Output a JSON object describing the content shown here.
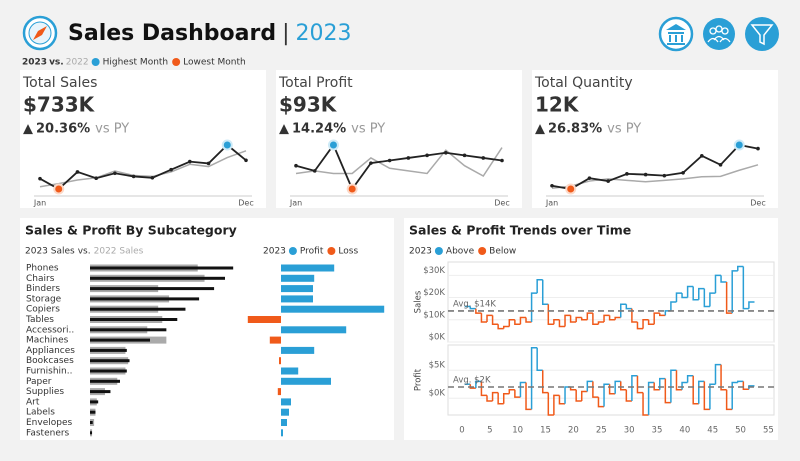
{
  "header": {
    "title": "Sales Dashboard",
    "separator": "|",
    "year": "2023",
    "compare_word": "vs.",
    "legend": [
      {
        "label": "Highest Month",
        "color": "#2a9fd6"
      },
      {
        "label": "Lowest Month",
        "color": "#f05a1a"
      }
    ]
  },
  "chart_data": [
    {
      "type": "sparkline",
      "title": "Total Sales",
      "total": "$733K",
      "change": {
        "arrow": "▲",
        "value": "20.36%",
        "suffix": "vs PY"
      },
      "categories": [
        "Jan",
        null,
        null,
        null,
        null,
        null,
        null,
        null,
        null,
        null,
        null,
        "Dec"
      ],
      "series": [
        {
          "name": "2023",
          "color": "#222222",
          "values": [
            43,
            20,
            58,
            44,
            55,
            48,
            45,
            63,
            81,
            77,
            118,
            84
          ]
        },
        {
          "name": "2022",
          "color": "#aaaaaa",
          "values": [
            25,
            32,
            40,
            45,
            60,
            50,
            48,
            58,
            75,
            70,
            90,
            105
          ]
        }
      ]
    },
    {
      "type": "sparkline",
      "title": "Total Profit",
      "total": "$93K",
      "change": {
        "arrow": "▲",
        "value": "14.24%",
        "suffix": "vs PY"
      },
      "categories": [
        "Jan",
        null,
        null,
        null,
        null,
        null,
        null,
        null,
        null,
        null,
        null,
        "Dec"
      ],
      "series": [
        {
          "color": "#222222",
          "values": [
            6,
            4,
            14,
            -3,
            7,
            8,
            9,
            10,
            11,
            10,
            9,
            8
          ]
        },
        {
          "color": "#aaaaaa",
          "values": [
            3,
            4,
            3,
            3,
            9,
            5,
            4,
            3,
            12,
            6,
            2,
            13
          ]
        }
      ]
    },
    {
      "type": "sparkline",
      "title": "Total Quantity",
      "total": "12K",
      "change": {
        "arrow": "▲",
        "value": "26.83%",
        "suffix": "vs PY"
      },
      "categories": [
        "Jan",
        null,
        null,
        null,
        null,
        null,
        null,
        null,
        null,
        null,
        null,
        "Dec"
      ],
      "series": [
        {
          "color": "#222222",
          "values": [
            570,
            480,
            780,
            700,
            900,
            880,
            850,
            930,
            1400,
            1150,
            1700,
            1600
          ]
        },
        {
          "color": "#aaaaaa",
          "values": [
            500,
            560,
            700,
            760,
            720,
            680,
            720,
            760,
            820,
            830,
            1000,
            1150
          ]
        }
      ]
    },
    {
      "type": "hbar",
      "title": "Sales & Profit By Subcategory",
      "legend_joiner": "vs.",
      "categories": [
        "Phones",
        "Chairs",
        "Binders",
        "Storage",
        "Copiers",
        "Tables",
        "Accessori..",
        "Machines",
        "Appliances",
        "Bookcases",
        "Furnishin..",
        "Paper",
        "Supplies",
        "Art",
        "Labels",
        "Envelopes",
        "Fasteners"
      ],
      "sales": {
        "xlim": [
          0,
          110
        ],
        "series": [
          {
            "name": "2023 Sales",
            "color": "#111111",
            "values": [
              105,
              99,
              91,
              80,
              70,
              64,
              56,
              44,
              27,
              29,
              27,
              22,
              15,
              6,
              4,
              2,
              1.5
            ]
          },
          {
            "name": "2022 Sales",
            "color": "#aaaaaa",
            "values": [
              79,
              84,
              50,
              58,
              50,
              53,
              42,
              56,
              26,
              28,
              26,
              20,
              11,
              5,
              4,
              3,
              1.5
            ]
          }
        ]
      },
      "profit": {
        "xlim": [
          -9,
          27
        ],
        "legend_title": "2023",
        "positive": {
          "label": "Profit",
          "color": "#2a9fd6"
        },
        "negative": {
          "label": "Loss",
          "color": "#f05a1a"
        },
        "values": [
          13.3,
          8.3,
          8,
          8,
          25.8,
          -8.3,
          16.3,
          -2.8,
          8.3,
          -0.5,
          4.3,
          12.5,
          -0.8,
          2.5,
          2,
          1.5,
          0.5
        ]
      }
    },
    {
      "type": "step",
      "title": "Sales & Profit Trends over Time",
      "legend_title": "2023",
      "above": {
        "label": "Above",
        "color": "#2a9fd6"
      },
      "below": {
        "label": "Below",
        "color": "#f05a1a"
      },
      "x": [
        1,
        2,
        3,
        4,
        5,
        6,
        7,
        8,
        9,
        10,
        11,
        12,
        13,
        14,
        15,
        16,
        17,
        18,
        19,
        20,
        21,
        22,
        23,
        24,
        25,
        26,
        27,
        28,
        29,
        30,
        31,
        32,
        33,
        34,
        35,
        36,
        37,
        38,
        39,
        40,
        41,
        42,
        43,
        44,
        45,
        46,
        47,
        48,
        49,
        50,
        51,
        52
      ],
      "xlim": [
        -2.5,
        56
      ],
      "xticks": [
        0,
        5,
        10,
        15,
        20,
        25,
        30,
        35,
        40,
        45,
        50,
        55
      ],
      "panels": [
        {
          "ylabel": "Sales",
          "ylim": [
            0,
            36
          ],
          "yticks": [
            {
              "value": 0,
              "label": "$0K"
            },
            {
              "value": 10,
              "label": "$10K"
            },
            {
              "value": 20,
              "label": "$20K"
            },
            {
              "value": 30,
              "label": "$30K"
            }
          ],
          "average": {
            "value": 14,
            "label": "Avg. $14K"
          },
          "values": [
            16,
            15,
            13,
            9,
            12,
            8,
            6,
            7,
            10,
            8,
            11,
            9,
            22,
            28,
            17,
            8,
            10,
            7,
            12,
            9,
            11,
            10,
            13,
            8,
            9,
            12,
            10,
            11,
            17,
            15,
            9,
            6,
            10,
            8,
            13,
            12,
            14,
            18,
            22,
            20,
            25,
            19,
            24,
            16,
            22,
            30,
            27,
            13,
            32,
            34,
            15,
            18
          ]
        },
        {
          "ylabel": "Profit",
          "ylim": [
            -3,
            9.5
          ],
          "yticks": [
            {
              "value": 0,
              "label": "$0K"
            },
            {
              "value": 5,
              "label": "$5K"
            }
          ],
          "average": {
            "value": 2,
            "label": "Avg. $2K"
          },
          "values": [
            2.5,
            1.8,
            3,
            0.5,
            -0.5,
            1,
            -1,
            0.8,
            1.5,
            0.2,
            2.8,
            -2,
            9,
            5,
            1,
            -3,
            0.5,
            -1,
            2,
            1.5,
            -0.5,
            1.2,
            3,
            0.2,
            -1.5,
            2.5,
            0.8,
            3,
            1.5,
            -0.5,
            4,
            1,
            -3,
            2.8,
            1.5,
            3.5,
            -0.8,
            5,
            1.5,
            2.8,
            4,
            -1,
            3,
            -2,
            2.5,
            6,
            1.5,
            -2,
            2.8,
            3,
            1.6,
            2.2
          ]
        }
      ]
    }
  ]
}
